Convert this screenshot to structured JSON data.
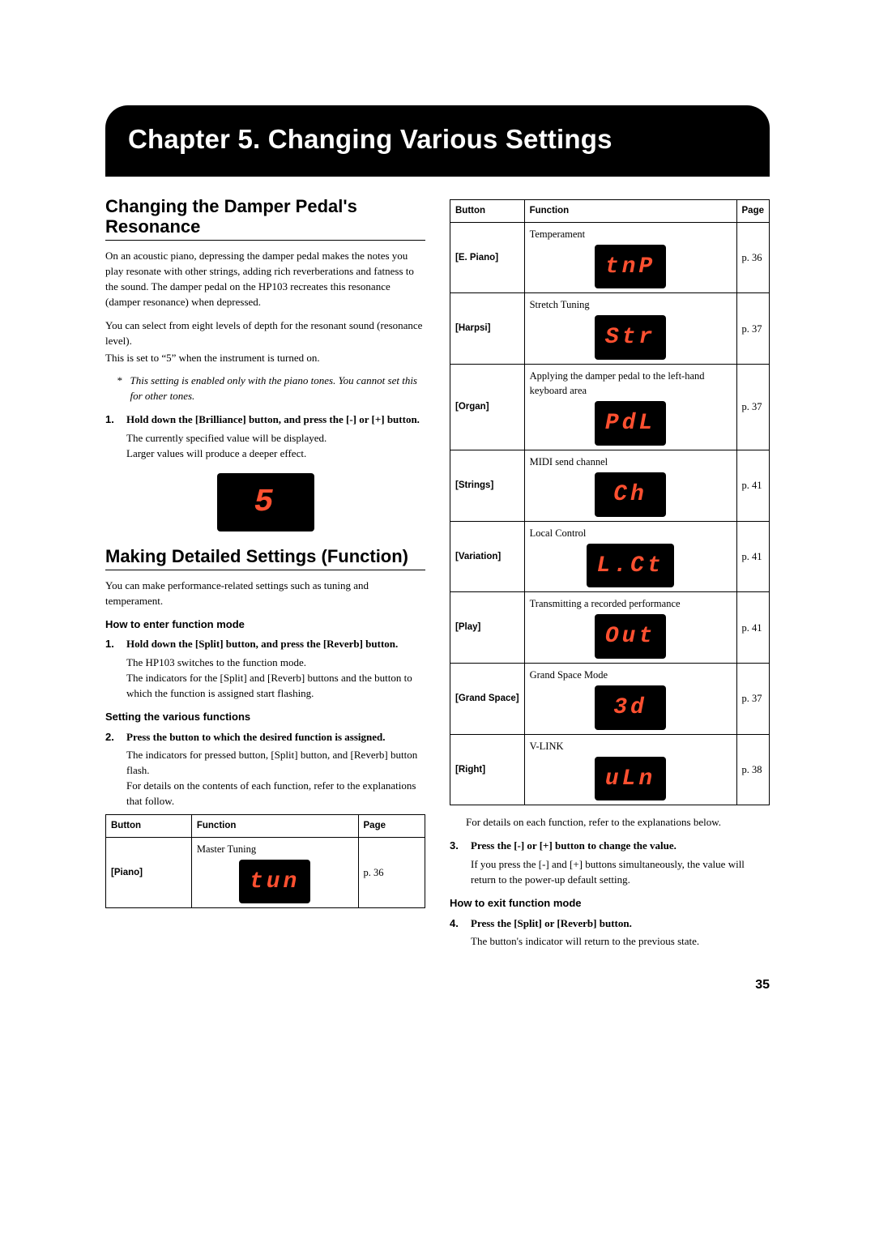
{
  "chapter_title": "Chapter 5. Changing Various Settings",
  "page_number": "35",
  "left": {
    "sec1_title": "Changing the Damper Pedal's Resonance",
    "sec1_p1": "On an acoustic piano, depressing the damper pedal makes the notes you play resonate with other strings, adding rich reverberations and fatness to the sound. The damper pedal on the HP103 recreates this resonance (damper resonance) when depressed.",
    "sec1_p2": "You can select from eight levels of depth for the resonant sound (resonance level).",
    "sec1_p3": "This is set to “5” when the instrument is turned on.",
    "sec1_note_ast": "*",
    "sec1_note": "This setting is enabled only with the piano tones. You cannot set this for other tones.",
    "sec1_step1_num": "1.",
    "sec1_step1": "Hold down the [Brilliance] button, and press the [-] or [+] button.",
    "sec1_step1_desc1": "The currently specified value will be displayed.",
    "sec1_step1_desc2": "Larger values will produce a deeper effect.",
    "sec1_display": "5",
    "sec2_title": "Making Detailed Settings (Function)",
    "sec2_p1": "You can make performance-related settings such as tuning and temperament.",
    "sec2_sub1": "How to enter function mode",
    "sec2_step1_num": "1.",
    "sec2_step1": "Hold down the [Split] button, and press the [Reverb] button.",
    "sec2_step1_desc1": "The HP103 switches to the function mode.",
    "sec2_step1_desc2": "The indicators for the [Split] and [Reverb] buttons and the button to which the function is assigned start flashing.",
    "sec2_sub2": "Setting the various functions",
    "sec2_step2_num": "2.",
    "sec2_step2": "Press the button to which the desired function is assigned.",
    "sec2_step2_desc1": "The indicators for pressed button, [Split] button, and [Reverb] button flash.",
    "sec2_step2_desc2": "For details on the contents of each function, refer to the explanations that follow."
  },
  "table_headers": {
    "button": "Button",
    "function": "Function",
    "page": "Page"
  },
  "table_left": {
    "rows": [
      {
        "button": "[Piano]",
        "function": "Master Tuning",
        "display": "tun",
        "page": "p. 36"
      }
    ]
  },
  "table_right": {
    "rows": [
      {
        "button": "[E. Piano]",
        "function": "Temperament",
        "display": "tnP",
        "page": "p. 36"
      },
      {
        "button": "[Harpsi]",
        "function": "Stretch Tuning",
        "display": "Str",
        "page": "p. 37"
      },
      {
        "button": "[Organ]",
        "function": "Applying the damper pedal to the left-hand keyboard area",
        "display": "PdL",
        "page": "p. 37"
      },
      {
        "button": "[Strings]",
        "function": "MIDI send channel",
        "display": "Ch",
        "page": "p. 41"
      },
      {
        "button": "[Variation]",
        "function": "Local Control",
        "display": "L.Ct",
        "page": "p. 41"
      },
      {
        "button": "[Play]",
        "function": "Transmitting a recorded performance",
        "display": "Out",
        "page": "p. 41"
      },
      {
        "button": "[Grand Space]",
        "function": "Grand Space Mode",
        "display": "3d",
        "page": "p. 37"
      },
      {
        "button": "[Right]",
        "function": "V-LINK",
        "display": "uLn",
        "page": "p. 38"
      }
    ]
  },
  "right": {
    "after_table": "For details on each function, refer to the explanations below.",
    "step3_num": "3.",
    "step3": "Press the [-] or [+] button to change the value.",
    "step3_desc": "If you press the [-] and [+] buttons simultaneously, the value will return to the power-up default setting.",
    "sub_exit": "How to exit function mode",
    "step4_num": "4.",
    "step4": "Press the [Split] or [Reverb] button.",
    "step4_desc": "The button's indicator will return to the previous state."
  }
}
